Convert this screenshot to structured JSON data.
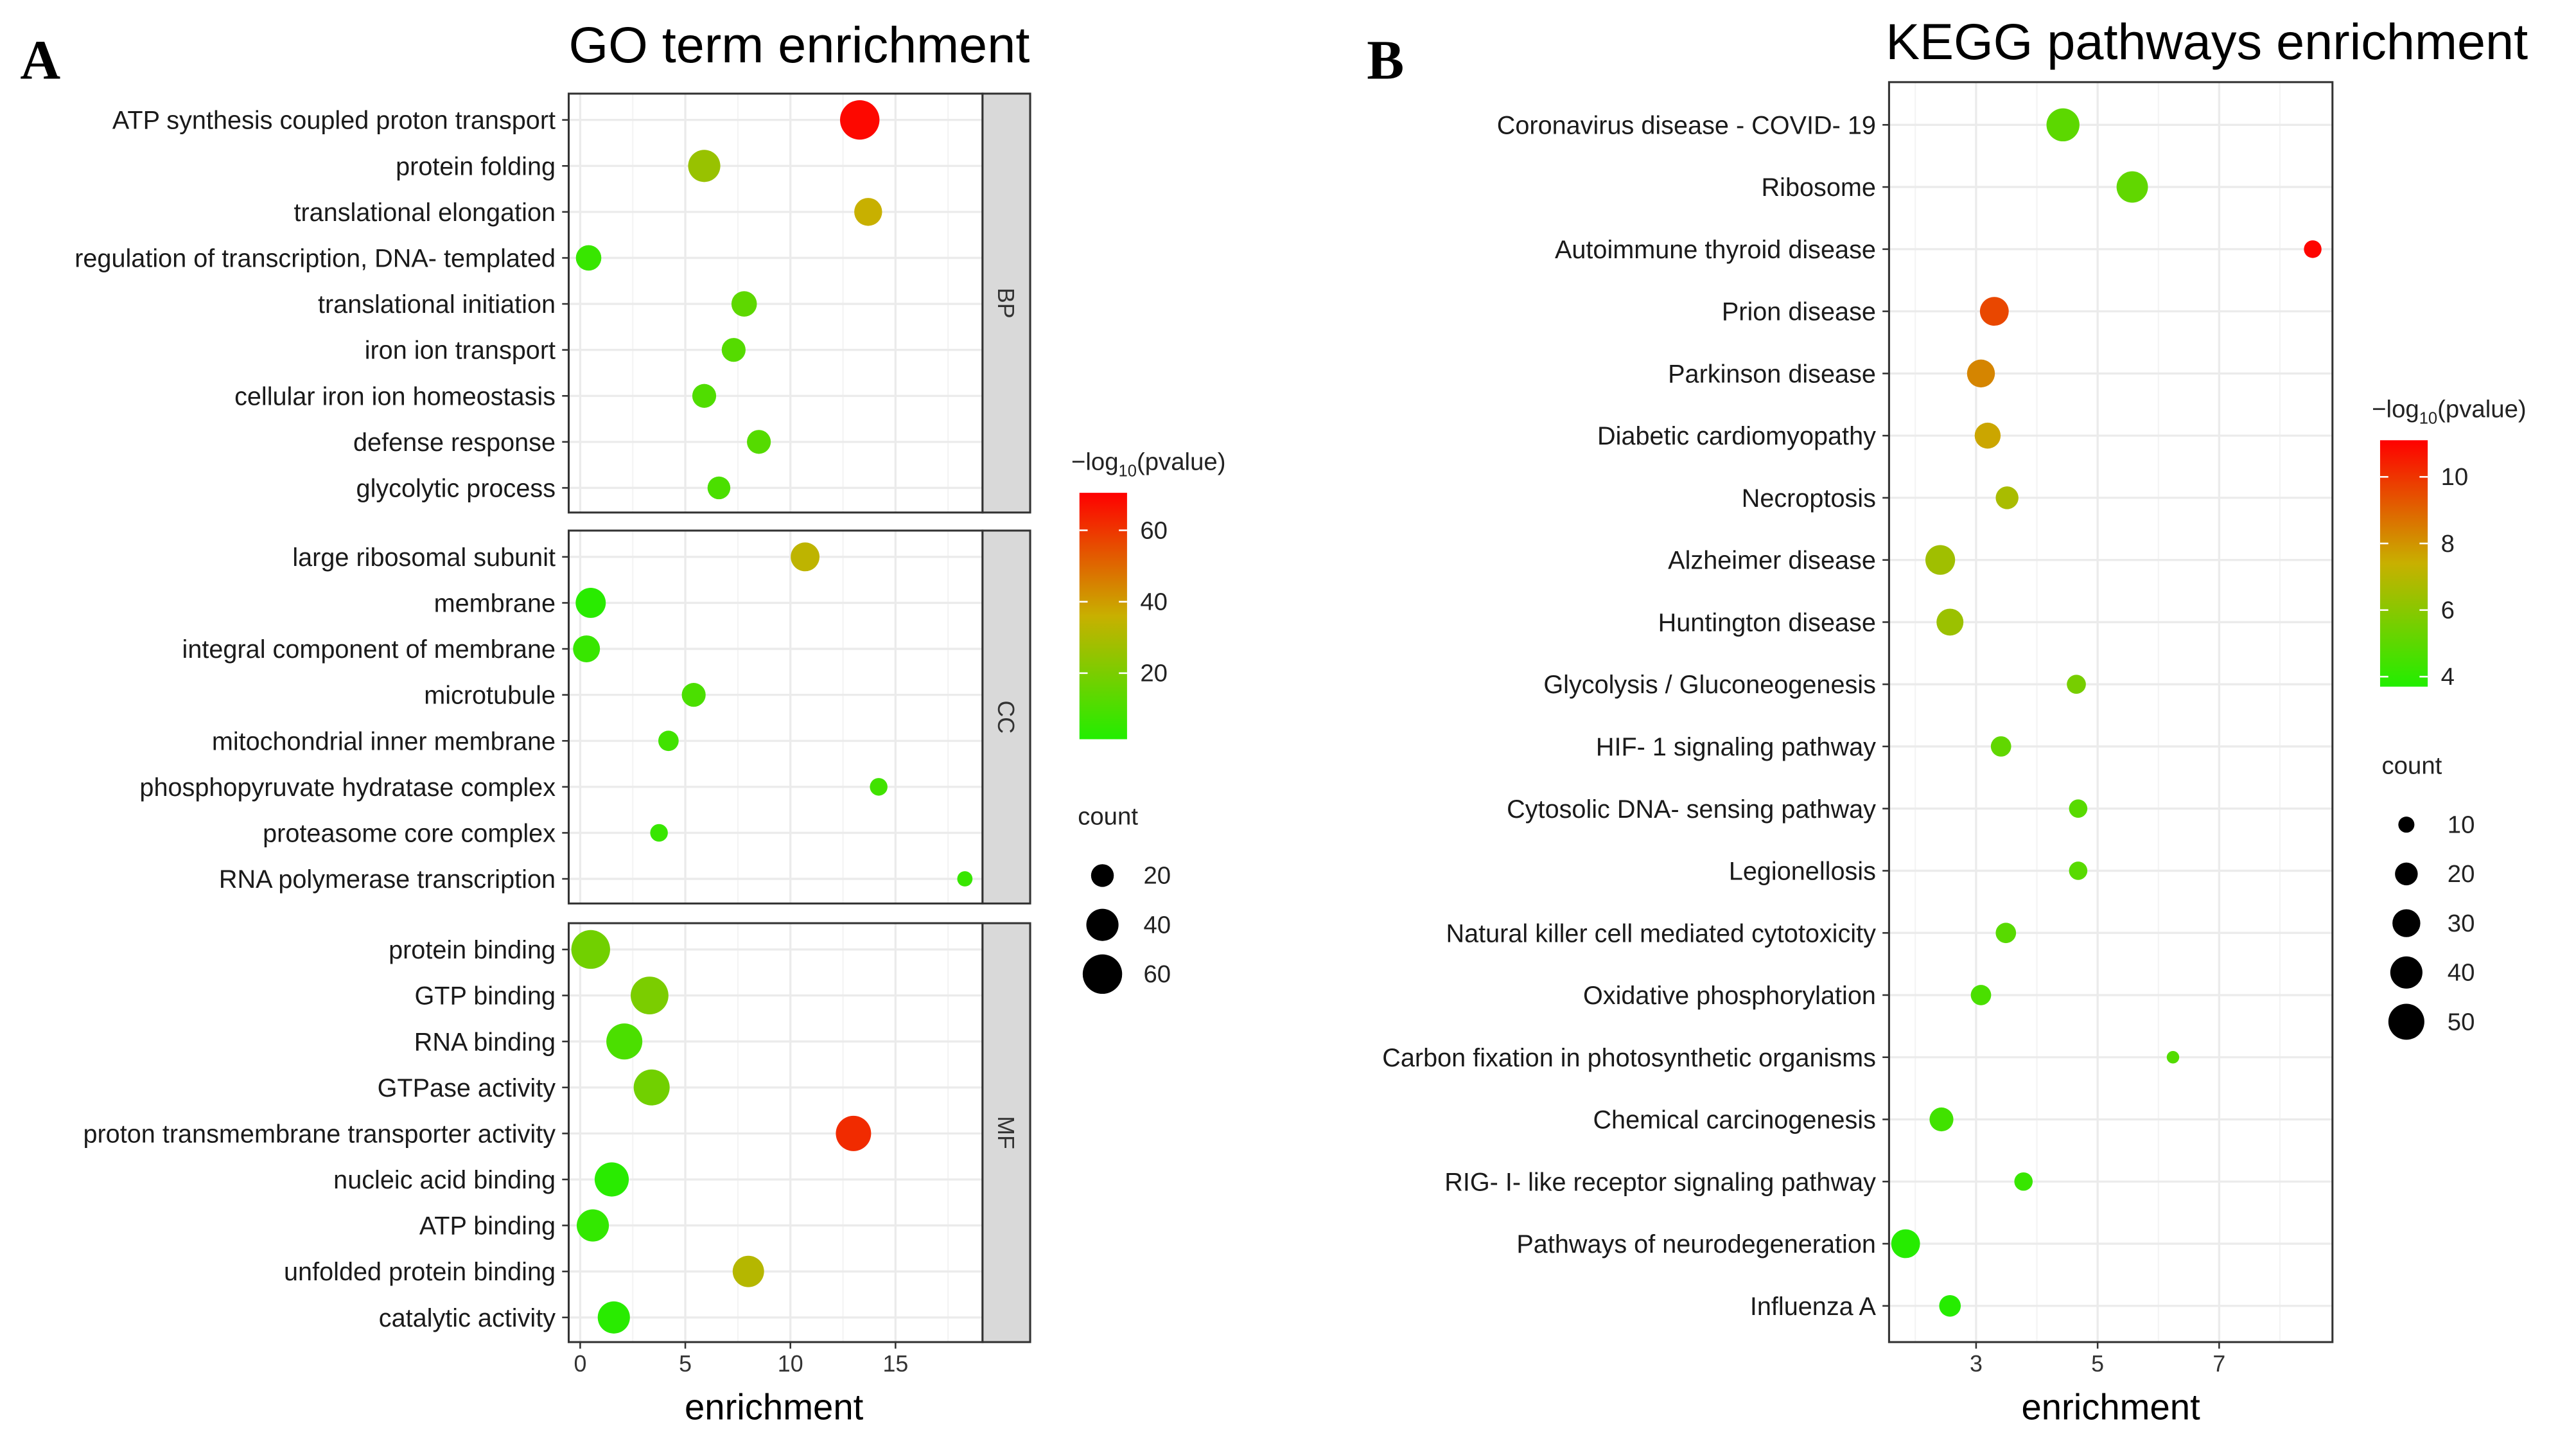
{
  "chart_data": [
    {
      "type": "scatter",
      "panel_label": "A",
      "title": "GO term enrichment",
      "xlabel": "enrichment",
      "xlim": [
        -0.5,
        19.5
      ],
      "xticks": [
        0,
        5,
        10,
        15
      ],
      "facets": [
        {
          "name": "BP",
          "terms": [
            {
              "term": "ATP synthesis coupled proton transport",
              "enrichment": 13.3,
              "count": 60,
              "neglog10p": 69
            },
            {
              "term": "protein folding",
              "enrichment": 5.9,
              "count": 40,
              "neglog10p": 26
            },
            {
              "term": "translational elongation",
              "enrichment": 13.7,
              "count": 30,
              "neglog10p": 36
            },
            {
              "term": "regulation of transcription, DNA- templated",
              "enrichment": 0.4,
              "count": 25,
              "neglog10p": 6
            },
            {
              "term": "translational initiation",
              "enrichment": 7.8,
              "count": 25,
              "neglog10p": 14
            },
            {
              "term": "iron ion transport",
              "enrichment": 7.3,
              "count": 22,
              "neglog10p": 12
            },
            {
              "term": "cellular iron ion homeostasis",
              "enrichment": 5.9,
              "count": 22,
              "neglog10p": 11
            },
            {
              "term": "defense response",
              "enrichment": 8.5,
              "count": 22,
              "neglog10p": 12
            },
            {
              "term": "glycolytic process",
              "enrichment": 6.6,
              "count": 20,
              "neglog10p": 10
            }
          ]
        },
        {
          "name": "CC",
          "terms": [
            {
              "term": "large ribosomal subunit",
              "enrichment": 10.7,
              "count": 32,
              "neglog10p": 34
            },
            {
              "term": "membrane",
              "enrichment": 0.5,
              "count": 35,
              "neglog10p": 3
            },
            {
              "term": "integral component of membrane",
              "enrichment": 0.3,
              "count": 28,
              "neglog10p": 6
            },
            {
              "term": "microtubule",
              "enrichment": 5.4,
              "count": 22,
              "neglog10p": 10
            },
            {
              "term": "mitochondrial inner membrane",
              "enrichment": 4.2,
              "count": 16,
              "neglog10p": 8
            },
            {
              "term": "phosphopyruvate hydratase complex",
              "enrichment": 14.2,
              "count": 12,
              "neglog10p": 8
            },
            {
              "term": "proteasome core complex",
              "enrichment": 3.75,
              "count": 12,
              "neglog10p": 6
            },
            {
              "term": "RNA polymerase transcription",
              "enrichment": 18.3,
              "count": 9,
              "neglog10p": 6
            }
          ]
        },
        {
          "name": "MF",
          "terms": [
            {
              "term": "protein binding",
              "enrichment": 0.5,
              "count": 58,
              "neglog10p": 18
            },
            {
              "term": "GTP binding",
              "enrichment": 3.3,
              "count": 55,
              "neglog10p": 20
            },
            {
              "term": "RNA binding",
              "enrichment": 2.1,
              "count": 50,
              "neglog10p": 10
            },
            {
              "term": "GTPase activity",
              "enrichment": 3.4,
              "count": 50,
              "neglog10p": 18
            },
            {
              "term": "proton transmembrane transporter activity",
              "enrichment": 13.0,
              "count": 48,
              "neglog10p": 62
            },
            {
              "term": "nucleic acid binding",
              "enrichment": 1.5,
              "count": 45,
              "neglog10p": 3
            },
            {
              "term": "ATP binding",
              "enrichment": 0.6,
              "count": 40,
              "neglog10p": 5
            },
            {
              "term": "unfolded protein binding",
              "enrichment": 8.0,
              "count": 38,
              "neglog10p": 32
            },
            {
              "term": "catalytic activity",
              "enrichment": 1.6,
              "count": 40,
              "neglog10p": 3
            }
          ]
        }
      ],
      "color_legend": {
        "title_prefix": "−log",
        "title_sub": "10",
        "title_suffix": "(pvalue)",
        "range": [
          1.5,
          70.5
        ],
        "ticks": [
          20,
          40,
          60
        ],
        "colors": [
          "#22ee00",
          "#c8b000",
          "#ff0000"
        ]
      },
      "size_legend": {
        "title": "count",
        "values": [
          20,
          40,
          60
        ]
      }
    },
    {
      "type": "scatter",
      "panel_label": "B",
      "title": "KEGG pathways enrichment",
      "xlabel": "enrichment",
      "xlim": [
        1.4,
        8.7
      ],
      "xticks": [
        3,
        5,
        7
      ],
      "terms": [
        {
          "term": "Coronavirus disease -  COVID- 19",
          "enrichment": 4.43,
          "count": 42,
          "neglog10p": 5.0
        },
        {
          "term": "Ribosome",
          "enrichment": 5.57,
          "count": 38,
          "neglog10p": 5.1
        },
        {
          "term": "Autoimmune thyroid disease",
          "enrichment": 8.54,
          "count": 12,
          "neglog10p": 11.0
        },
        {
          "term": "Prion disease",
          "enrichment": 3.3,
          "count": 32,
          "neglog10p": 9.6
        },
        {
          "term": "Parkinson disease",
          "enrichment": 3.08,
          "count": 30,
          "neglog10p": 8.3
        },
        {
          "term": "Diabetic cardiomyopathy",
          "enrichment": 3.19,
          "count": 26,
          "neglog10p": 7.6
        },
        {
          "term": "Necroptosis",
          "enrichment": 3.51,
          "count": 20,
          "neglog10p": 6.7
        },
        {
          "term": "Alzheimer disease",
          "enrichment": 2.41,
          "count": 34,
          "neglog10p": 6.5
        },
        {
          "term": "Huntington disease",
          "enrichment": 2.57,
          "count": 28,
          "neglog10p": 6.4
        },
        {
          "term": "Glycolysis / Gluconeogenesis",
          "enrichment": 4.65,
          "count": 14,
          "neglog10p": 5.6
        },
        {
          "term": "HIF- 1 signaling pathway",
          "enrichment": 3.41,
          "count": 16,
          "neglog10p": 5.1
        },
        {
          "term": "Cytosolic DNA- sensing pathway",
          "enrichment": 4.68,
          "count": 13,
          "neglog10p": 4.9
        },
        {
          "term": "Legionellosis",
          "enrichment": 4.68,
          "count": 13,
          "neglog10p": 4.9
        },
        {
          "term": "Natural killer cell mediated cytotoxicity",
          "enrichment": 3.49,
          "count": 16,
          "neglog10p": 4.9
        },
        {
          "term": "Oxidative phosphorylation",
          "enrichment": 3.08,
          "count": 16,
          "neglog10p": 4.6
        },
        {
          "term": "Carbon fixation in photosynthetic organisms",
          "enrichment": 6.24,
          "count": 6,
          "neglog10p": 4.8
        },
        {
          "term": "Chemical carcinogenesis",
          "enrichment": 2.43,
          "count": 22,
          "neglog10p": 4.4
        },
        {
          "term": "RIG- I- like receptor signaling pathway",
          "enrichment": 3.78,
          "count": 13,
          "neglog10p": 4.2
        },
        {
          "term": "Pathways of neurodegeneration",
          "enrichment": 1.84,
          "count": 32,
          "neglog10p": 3.8
        },
        {
          "term": "Influenza A",
          "enrichment": 2.57,
          "count": 18,
          "neglog10p": 3.8
        }
      ],
      "color_legend": {
        "title_prefix": "−log",
        "title_sub": "10",
        "title_suffix": "(pvalue)",
        "range": [
          3.7,
          11.1
        ],
        "ticks": [
          4,
          6,
          8,
          10
        ],
        "colors": [
          "#22ee00",
          "#c8b000",
          "#ff0000"
        ]
      },
      "size_legend": {
        "title": "count",
        "values": [
          10,
          20,
          30,
          40,
          50
        ]
      }
    }
  ]
}
